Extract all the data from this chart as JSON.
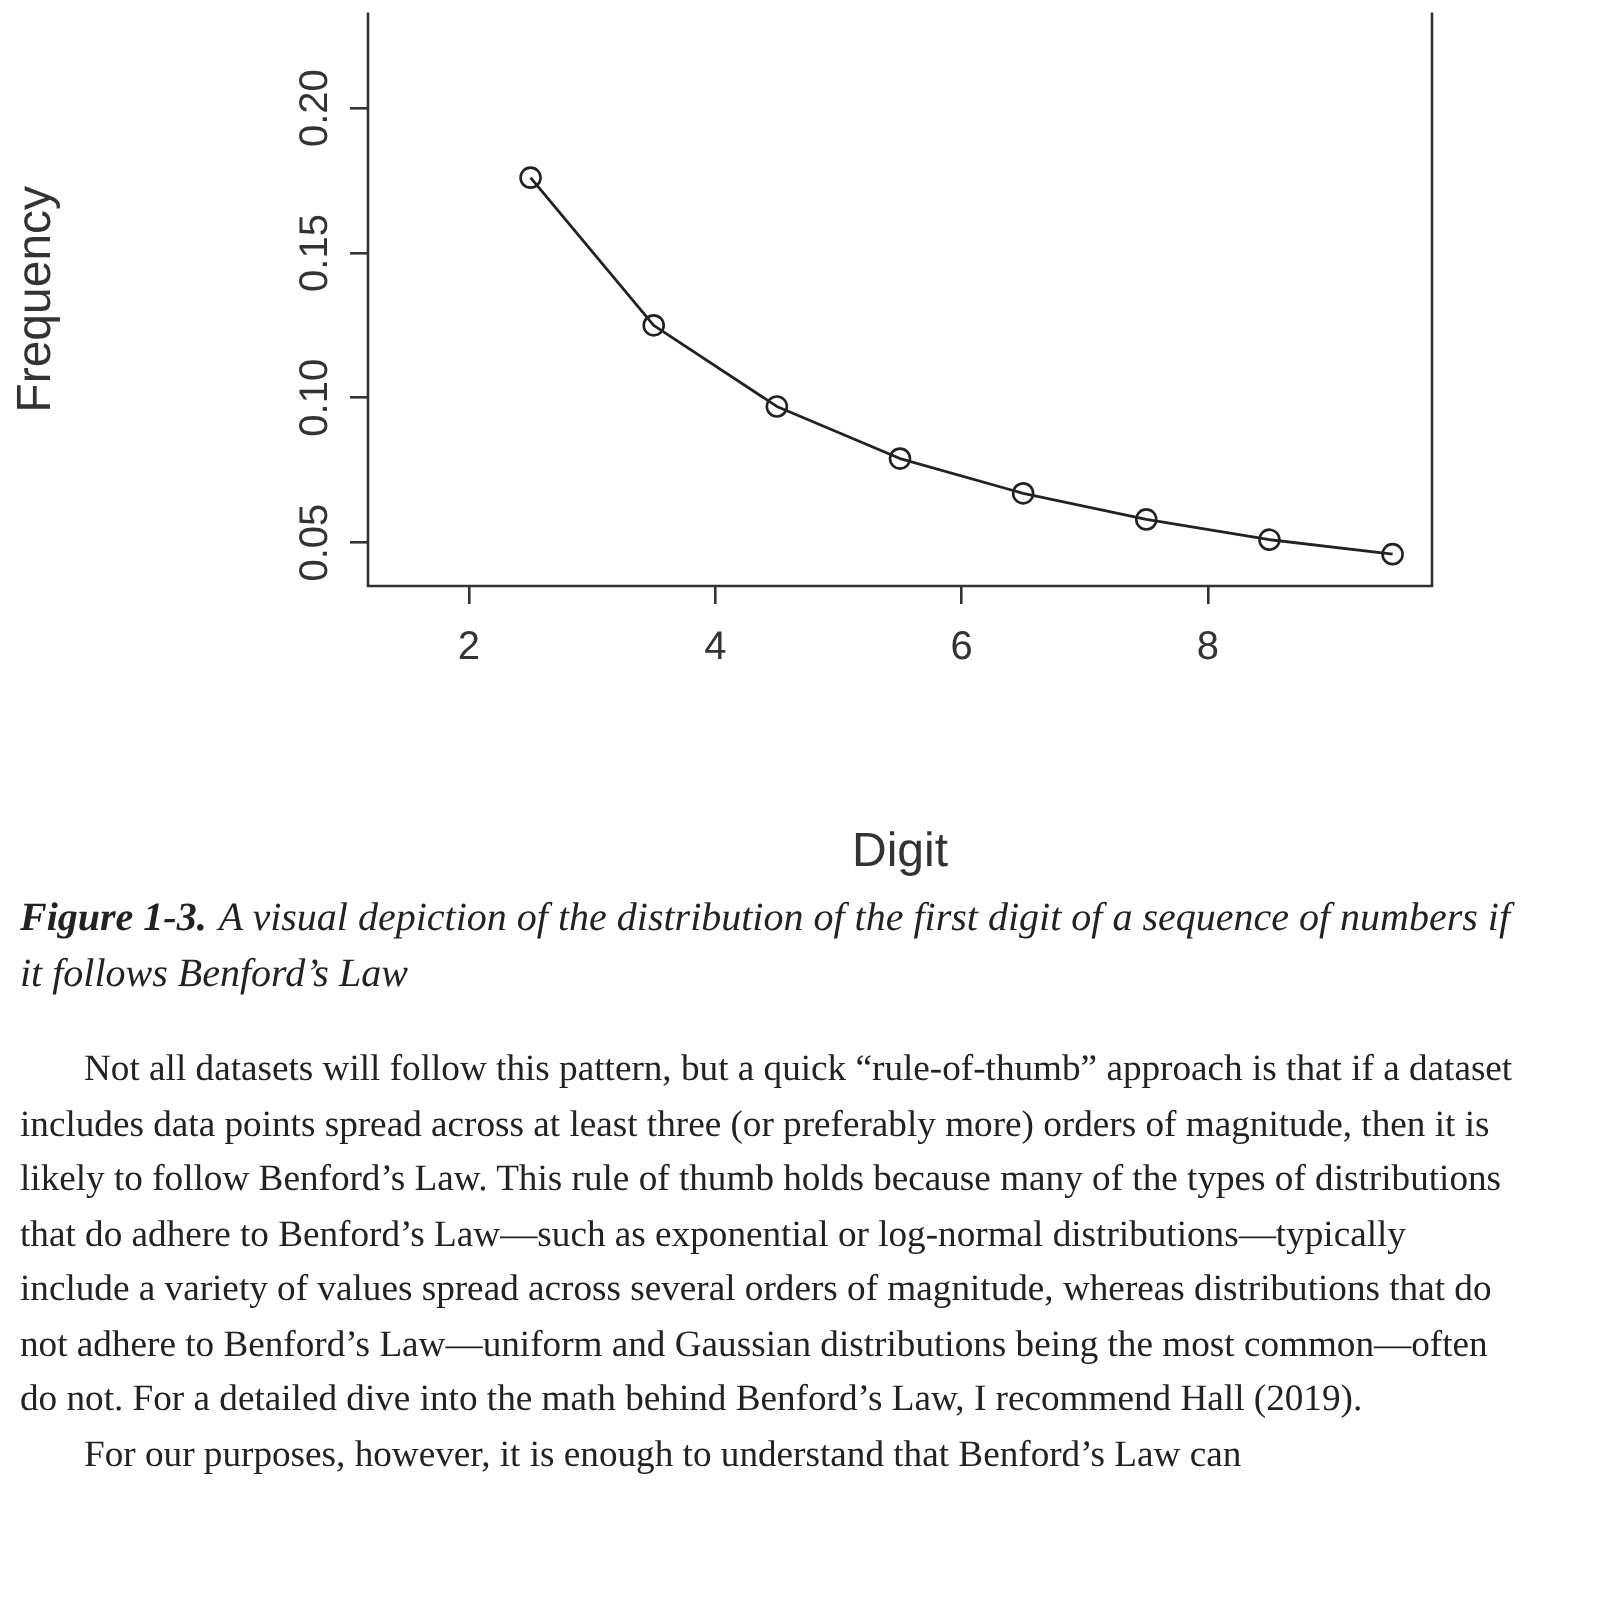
{
  "chart_data": {
    "type": "line",
    "xlabel": "Digit",
    "ylabel": "Frequency",
    "x": [
      2.5,
      3.5,
      4.5,
      5.5,
      6.5,
      7.5,
      8.5,
      9.5
    ],
    "series": [
      {
        "color": "#222222",
        "values": [
          0.176,
          0.125,
          0.097,
          0.079,
          0.067,
          0.058,
          0.051,
          0.046
        ]
      }
    ],
    "xlim": [
      1.18,
      9.82
    ],
    "xticks": [
      2,
      4,
      6,
      8
    ],
    "ylim": [
      0.035,
      0.233
    ],
    "yticks": [
      {
        "value": 0.05,
        "label": "0.05"
      },
      {
        "value": 0.1,
        "label": "0.10"
      },
      {
        "value": 0.15,
        "label": "0.15"
      },
      {
        "value": 0.2,
        "label": "0.20"
      }
    ],
    "grid": false,
    "legend": false,
    "marker": "circle",
    "line_style": "solid",
    "annotations": [
      "Figure 1-3.",
      "A visual depiction of the distribution of the first digit of a sequence of numbers if it follows Benford’s Law",
      "Not all datasets will follow this pattern, but a quick “rule-of-thumb” approach is that if a dataset includes data points spread across at least three (or preferably more) orders of magnitude, then it is likely to follow Benford’s Law. This rule of thumb holds because many of the types of distributions that do adhere to Benford’s Law—such as exponential or log-normal distributions—typically include a variety of values spread across several orders of magnitude, whereas distributions that do not adhere to Benford’s Law—uniform and Gaussian distributions being the most common—often do not. For a detailed dive into the math behind Benford’s Law, I recommend Hall (2019).",
      "For our purposes, however, it is enough to understand that Benford’s Law can"
    ]
  }
}
